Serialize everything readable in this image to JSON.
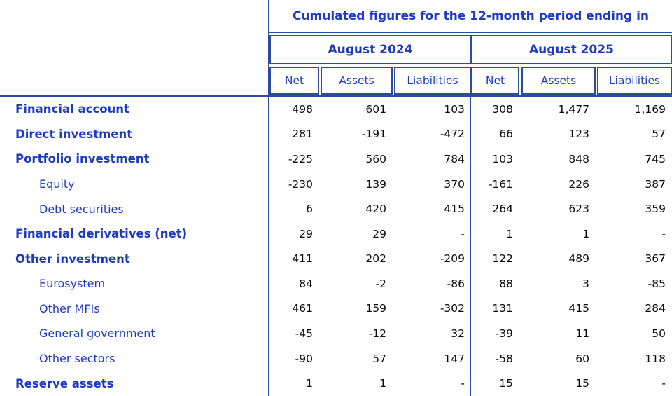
{
  "table": {
    "title": "Cumulated figures for the 12-month period ending in",
    "groups": [
      {
        "label": "August 2024"
      },
      {
        "label": "August 2025"
      }
    ],
    "columns": [
      "Net",
      "Assets",
      "Liabilities",
      "Net",
      "Assets",
      "Liabilities"
    ],
    "rows": [
      {
        "label": "Financial account",
        "bold": true,
        "indent": false,
        "values": [
          "498",
          "601",
          "103",
          "308",
          "1,477",
          "1,169"
        ]
      },
      {
        "label": "Direct investment",
        "bold": true,
        "indent": false,
        "values": [
          "281",
          "-191",
          "-472",
          "66",
          "123",
          "57"
        ]
      },
      {
        "label": "Portfolio investment",
        "bold": true,
        "indent": false,
        "values": [
          "-225",
          "560",
          "784",
          "103",
          "848",
          "745"
        ]
      },
      {
        "label": "Equity",
        "bold": false,
        "indent": true,
        "values": [
          "-230",
          "139",
          "370",
          "-161",
          "226",
          "387"
        ]
      },
      {
        "label": "Debt securities",
        "bold": false,
        "indent": true,
        "values": [
          "6",
          "420",
          "415",
          "264",
          "623",
          "359"
        ]
      },
      {
        "label": "Financial derivatives (net)",
        "bold": true,
        "indent": false,
        "values": [
          "29",
          "29",
          "-",
          "1",
          "1",
          "-"
        ]
      },
      {
        "label": "Other investment",
        "bold": true,
        "indent": false,
        "values": [
          "411",
          "202",
          "-209",
          "122",
          "489",
          "367"
        ]
      },
      {
        "label": "Eurosystem",
        "bold": false,
        "indent": true,
        "values": [
          "84",
          "-2",
          "-86",
          "88",
          "3",
          "-85"
        ]
      },
      {
        "label": "Other MFIs",
        "bold": false,
        "indent": true,
        "values": [
          "461",
          "159",
          "-302",
          "131",
          "415",
          "284"
        ]
      },
      {
        "label": "General government",
        "bold": false,
        "indent": true,
        "values": [
          "-45",
          "-12",
          "32",
          "-39",
          "11",
          "50"
        ]
      },
      {
        "label": "Other sectors",
        "bold": false,
        "indent": true,
        "values": [
          "-90",
          "57",
          "147",
          "-58",
          "60",
          "118"
        ]
      },
      {
        "label": "Reserve assets",
        "bold": true,
        "indent": false,
        "values": [
          "1",
          "1",
          "-",
          "15",
          "15",
          "-"
        ]
      }
    ],
    "colors": {
      "text_blue": "#1d3ac4",
      "border_blue": "#2b4ba5",
      "number_black": "#0a0a0a"
    }
  }
}
